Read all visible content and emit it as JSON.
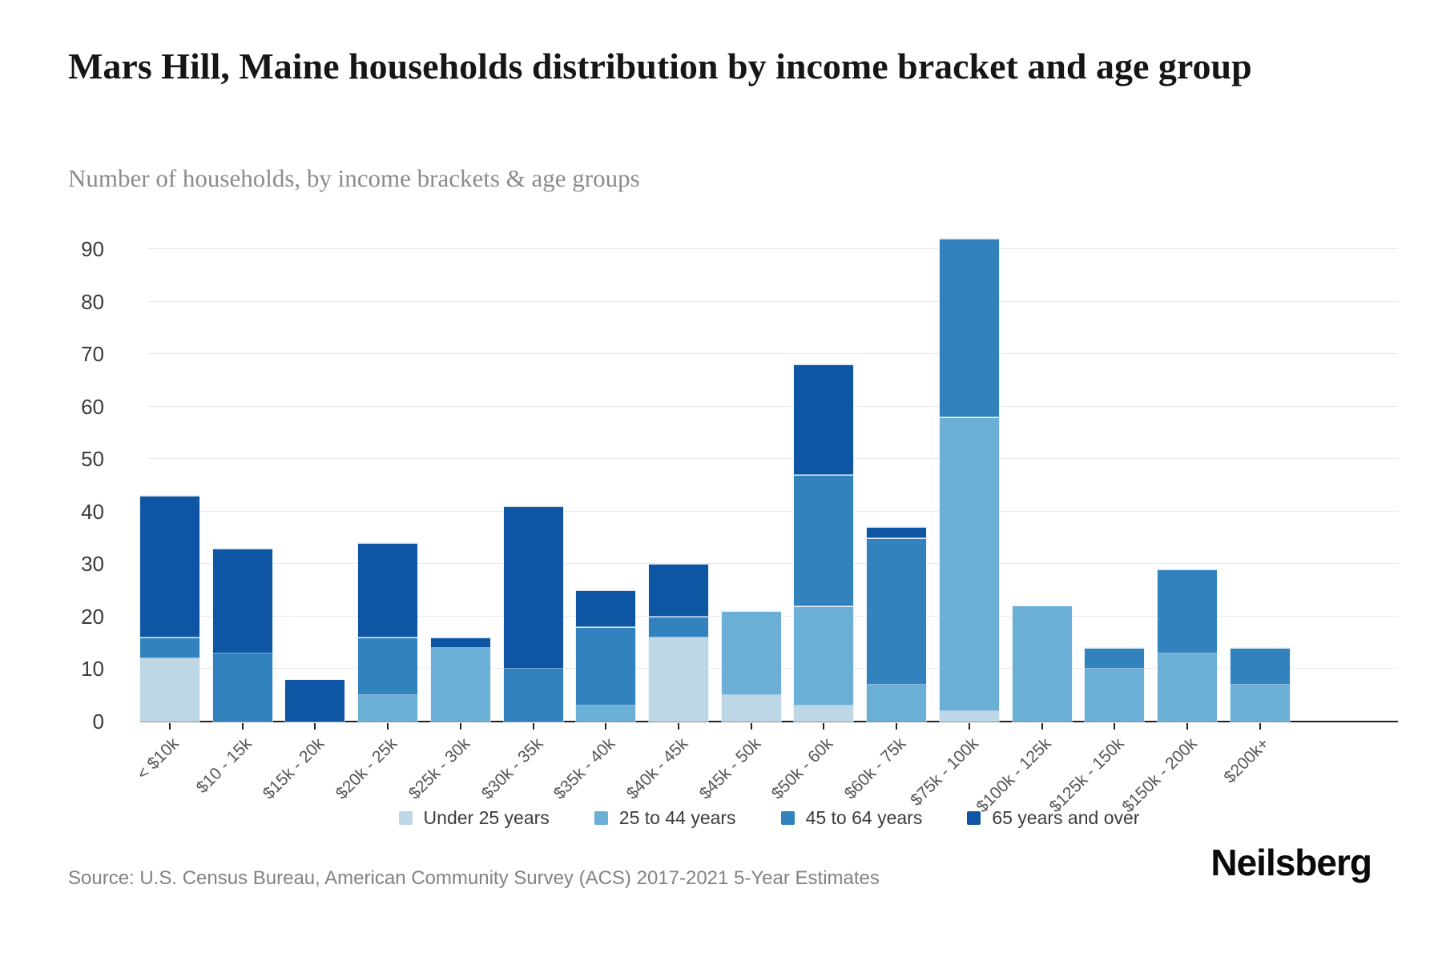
{
  "header": {
    "title": "Mars Hill, Maine households distribution by income bracket and age group",
    "subtitle": "Number of households, by income brackets & age groups"
  },
  "chart_data": {
    "type": "bar",
    "stacked": true,
    "title": "Mars Hill, Maine households distribution by income bracket and age group",
    "subtitle": "Number of households, by income brackets & age groups",
    "categories": [
      "< $10k",
      "$10 - 15k",
      "$15k - 20k",
      "$20k - 25k",
      "$25k - 30k",
      "$30k - 35k",
      "$35k - 40k",
      "$40k - 45k",
      "$45k - 50k",
      "$50k - 60k",
      "$60k - 75k",
      "$75k - 100k",
      "$100k - 125k",
      "$125k - 150k",
      "$150k - 200k",
      "$200k+"
    ],
    "series": [
      {
        "name": "Under 25 years",
        "color": "#bdd7e7",
        "values": [
          12,
          0,
          0,
          0,
          0,
          0,
          0,
          16,
          5,
          3,
          0,
          2,
          0,
          0,
          0,
          0
        ]
      },
      {
        "name": "25 to 44 years",
        "color": "#6baed6",
        "values": [
          0,
          0,
          0,
          5,
          14,
          0,
          3,
          0,
          16,
          19,
          7,
          56,
          22,
          10,
          13,
          7
        ]
      },
      {
        "name": "45 to 64 years",
        "color": "#3182bd",
        "values": [
          4,
          13,
          0,
          11,
          0,
          10,
          15,
          4,
          0,
          25,
          28,
          34,
          0,
          4,
          16,
          7
        ]
      },
      {
        "name": "65 years and over",
        "color": "#0e56a4",
        "values": [
          27,
          20,
          8,
          18,
          2,
          31,
          7,
          10,
          0,
          21,
          2,
          0,
          0,
          0,
          0,
          0
        ]
      }
    ],
    "totals": [
      43,
      33,
      8,
      34,
      16,
      41,
      25,
      30,
      21,
      68,
      37,
      92,
      22,
      14,
      29,
      14
    ],
    "xlabel": "",
    "ylabel": "",
    "ylim": [
      0,
      90
    ],
    "ytick_step": 10,
    "grid": true,
    "legend_position": "bottom"
  },
  "footer": {
    "source": "Source: U.S. Census Bureau, American Community Survey (ACS) 2017-2021 5-Year Estimates",
    "logo": "Neilsberg"
  }
}
